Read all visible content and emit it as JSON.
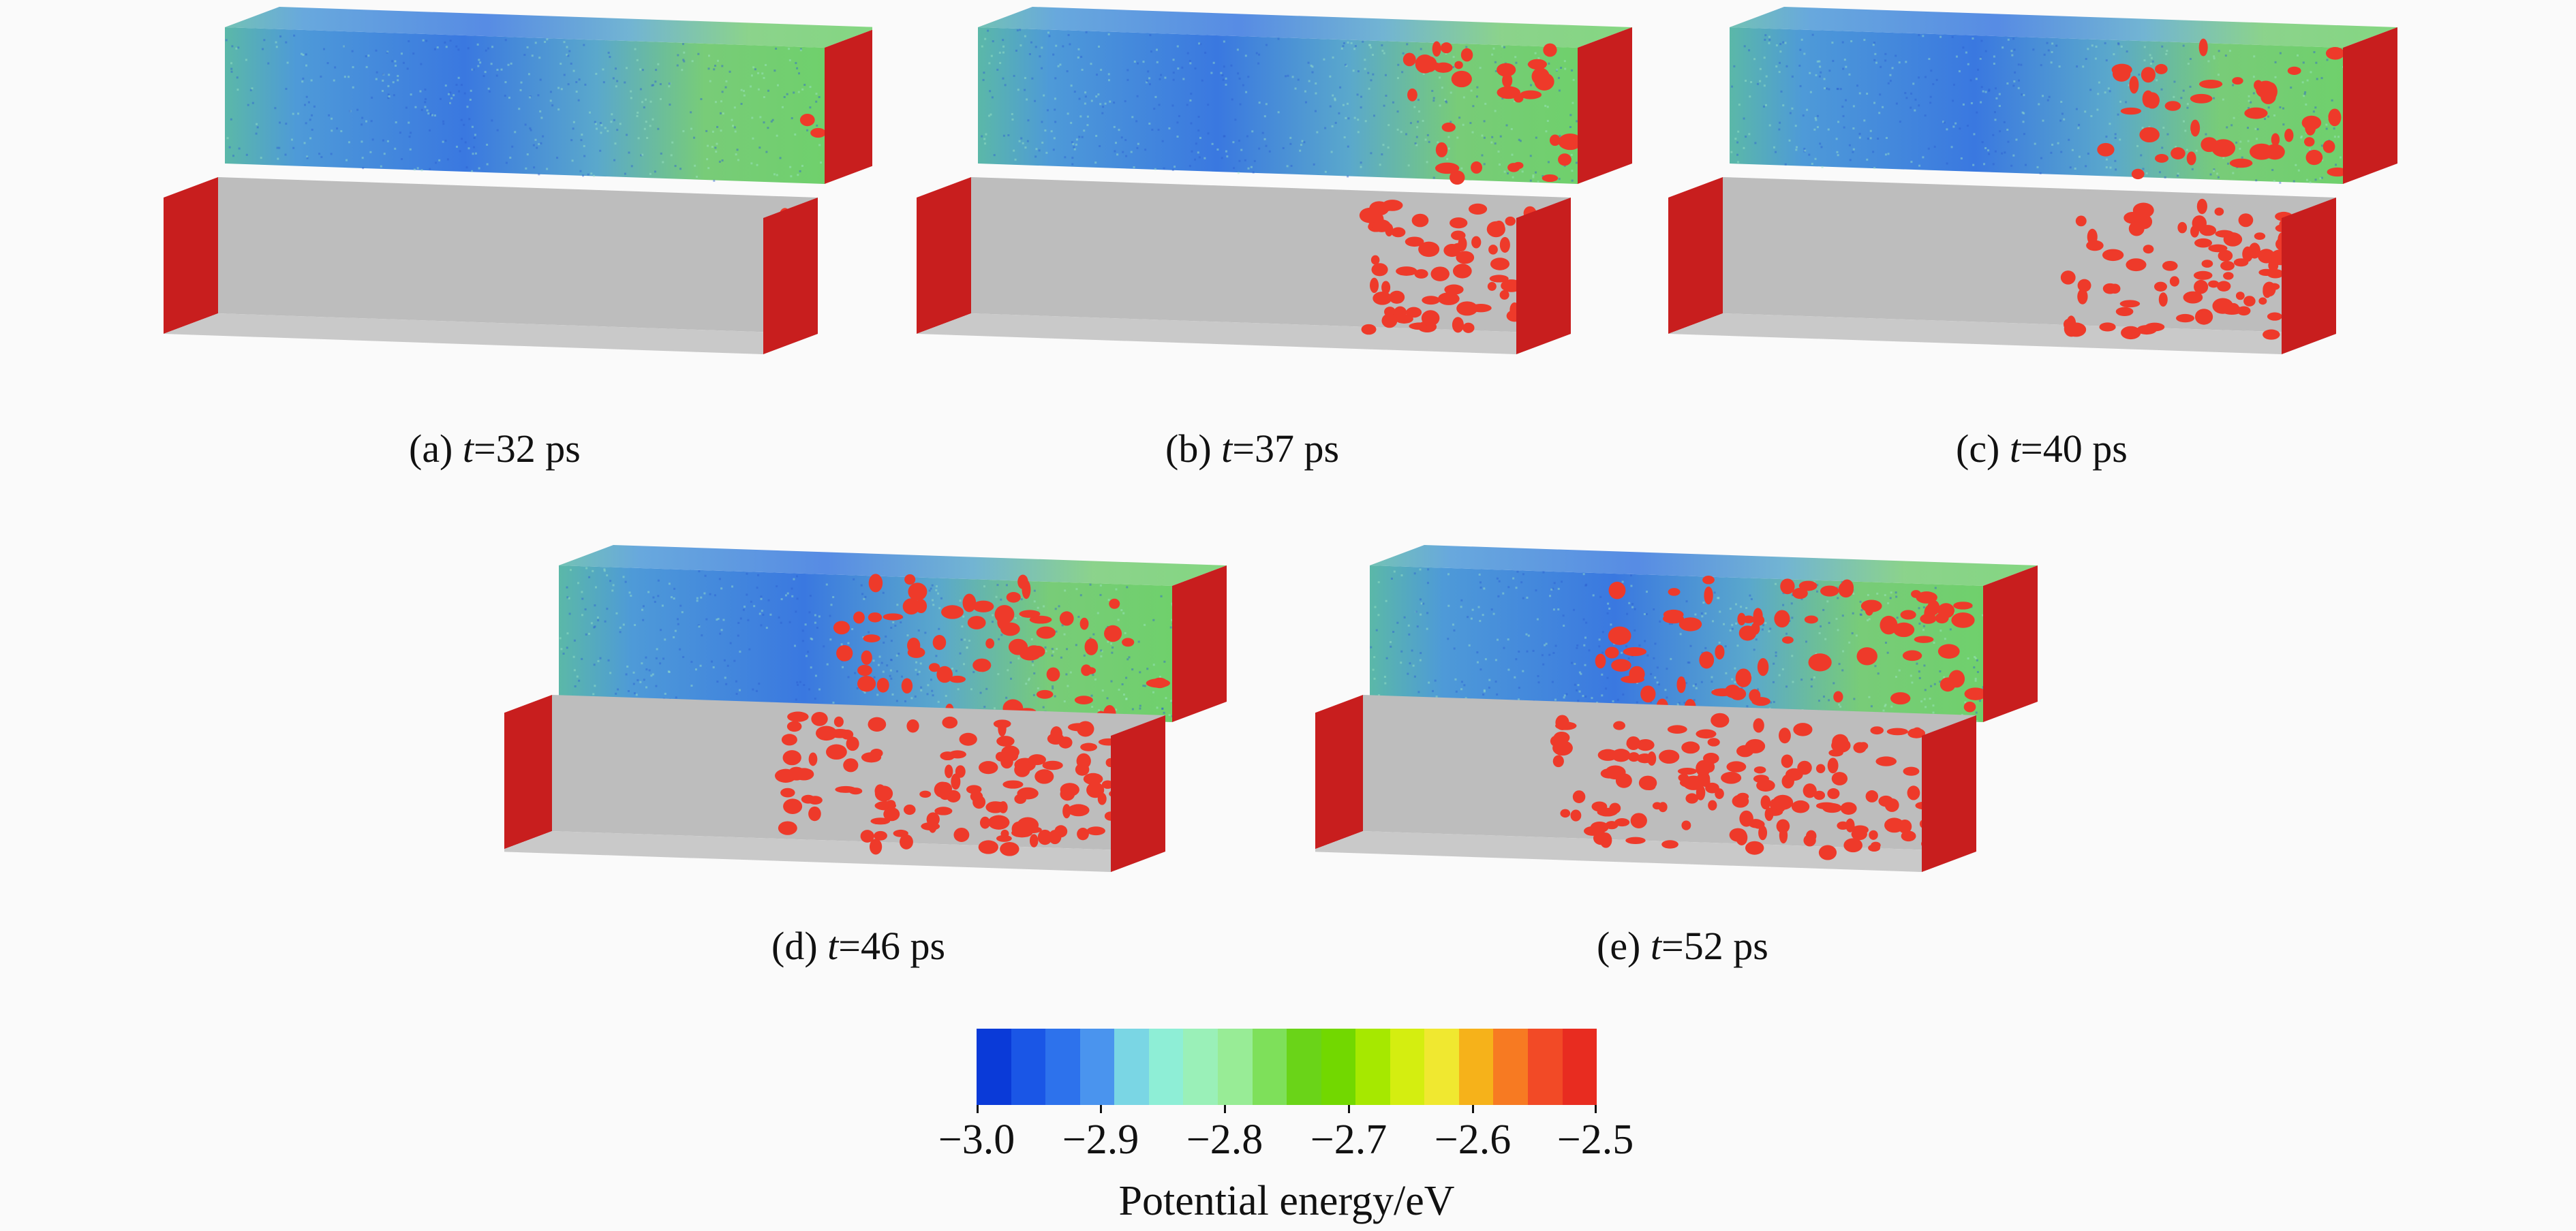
{
  "panels": [
    {
      "label": "(a) ",
      "t_symbol": "t",
      "value_text": "=32 ps",
      "time_ps": 32
    },
    {
      "label": "(b) ",
      "t_symbol": "t",
      "value_text": "=37 ps",
      "time_ps": 37
    },
    {
      "label": "(c) ",
      "t_symbol": "t",
      "value_text": "=40 ps",
      "time_ps": 40
    },
    {
      "label": "(d) ",
      "t_symbol": "t",
      "value_text": "=46 ps",
      "time_ps": 46
    },
    {
      "label": "(e) ",
      "t_symbol": "t",
      "value_text": "=52 ps",
      "time_ps": 52
    }
  ],
  "colorbar": {
    "title": "Potential energy/eV",
    "min": -3.0,
    "max": -2.5,
    "tick_labels": [
      "−3.0",
      "−2.9",
      "−2.8",
      "−2.7",
      "−2.6",
      "−2.5"
    ],
    "colors": [
      "#0a3ad8",
      "#1a56e6",
      "#2d72ec",
      "#4a94ee",
      "#7ad6e4",
      "#8eeed6",
      "#9af0b8",
      "#98ec96",
      "#7ee05a",
      "#6ad418",
      "#72d800",
      "#a6e800",
      "#d4ee10",
      "#f0e830",
      "#f6b21a",
      "#f77a22",
      "#f24a26",
      "#e82c20"
    ]
  },
  "colors": {
    "cluster_red": "#ee3a2a",
    "end_cap_red": "#c81e1e",
    "gray_slab": "#c9c9c9",
    "background": "#fafafa"
  }
}
